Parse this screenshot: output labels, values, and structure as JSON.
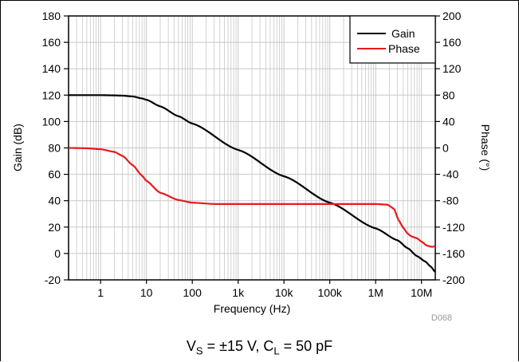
{
  "chart_data": {
    "type": "line",
    "figure_id": "D068",
    "xlabel": "Frequency (Hz)",
    "ylabel_left": "Gain (dB)",
    "ylabel_right": "Phase (°)",
    "x_scale": "log",
    "xlim": [
      0.2,
      20000000
    ],
    "ylim_left": [
      -20,
      180
    ],
    "ylim_right": [
      -200,
      200
    ],
    "x_ticks": [
      {
        "value": 1,
        "label": "1"
      },
      {
        "value": 10,
        "label": "10"
      },
      {
        "value": 100,
        "label": "100"
      },
      {
        "value": 1000,
        "label": "1k"
      },
      {
        "value": 10000,
        "label": "10k"
      },
      {
        "value": 100000,
        "label": "100k"
      },
      {
        "value": 1000000,
        "label": "1M"
      },
      {
        "value": 10000000,
        "label": "10M"
      }
    ],
    "y_ticks_left": [
      180,
      160,
      140,
      120,
      100,
      80,
      60,
      40,
      20,
      0,
      -20
    ],
    "y_ticks_right": [
      200,
      160,
      120,
      80,
      40,
      0,
      -40,
      -80,
      -120,
      -160,
      -200
    ],
    "grid": true,
    "legend_position": "top-right",
    "colors": {
      "gain": "#000000",
      "phase": "#e8191c",
      "grid": "#c8c8c8"
    },
    "series": [
      {
        "name": "Gain",
        "axis": "left",
        "x": [
          0.2,
          0.5,
          1,
          2,
          3,
          5,
          8,
          10,
          20,
          50,
          100,
          1000,
          10000,
          100000,
          1000000,
          3000000,
          5000000,
          8000000,
          12000000,
          16000000,
          20000000
        ],
        "values": [
          120,
          120,
          120,
          119.8,
          119.6,
          119,
          117.5,
          116.5,
          111.5,
          104,
          98.5,
          78.5,
          58.5,
          38.5,
          19,
          10,
          4,
          -2,
          -6,
          -10,
          -14
        ]
      },
      {
        "name": "Phase",
        "axis": "right",
        "x": [
          0.2,
          0.5,
          1,
          2,
          3,
          5,
          8,
          10,
          20,
          50,
          100,
          300,
          1000,
          10000,
          100000,
          1000000,
          1800000,
          2500000,
          3200000,
          4000000,
          5000000,
          6000000,
          8000000,
          10000000,
          13000000,
          17000000,
          20000000
        ],
        "values": [
          0,
          -0.5,
          -2,
          -6,
          -12,
          -26,
          -42,
          -50,
          -68,
          -79,
          -83,
          -85,
          -85,
          -85,
          -85,
          -85,
          -86,
          -92,
          -110,
          -121,
          -130,
          -134,
          -137,
          -142,
          -148,
          -150,
          -149
        ]
      }
    ]
  },
  "caption": {
    "v_main": "V",
    "v_sub": "S",
    "mid": " = ±15 V, C",
    "c_sub": "L",
    "tail": " = 50 pF"
  }
}
